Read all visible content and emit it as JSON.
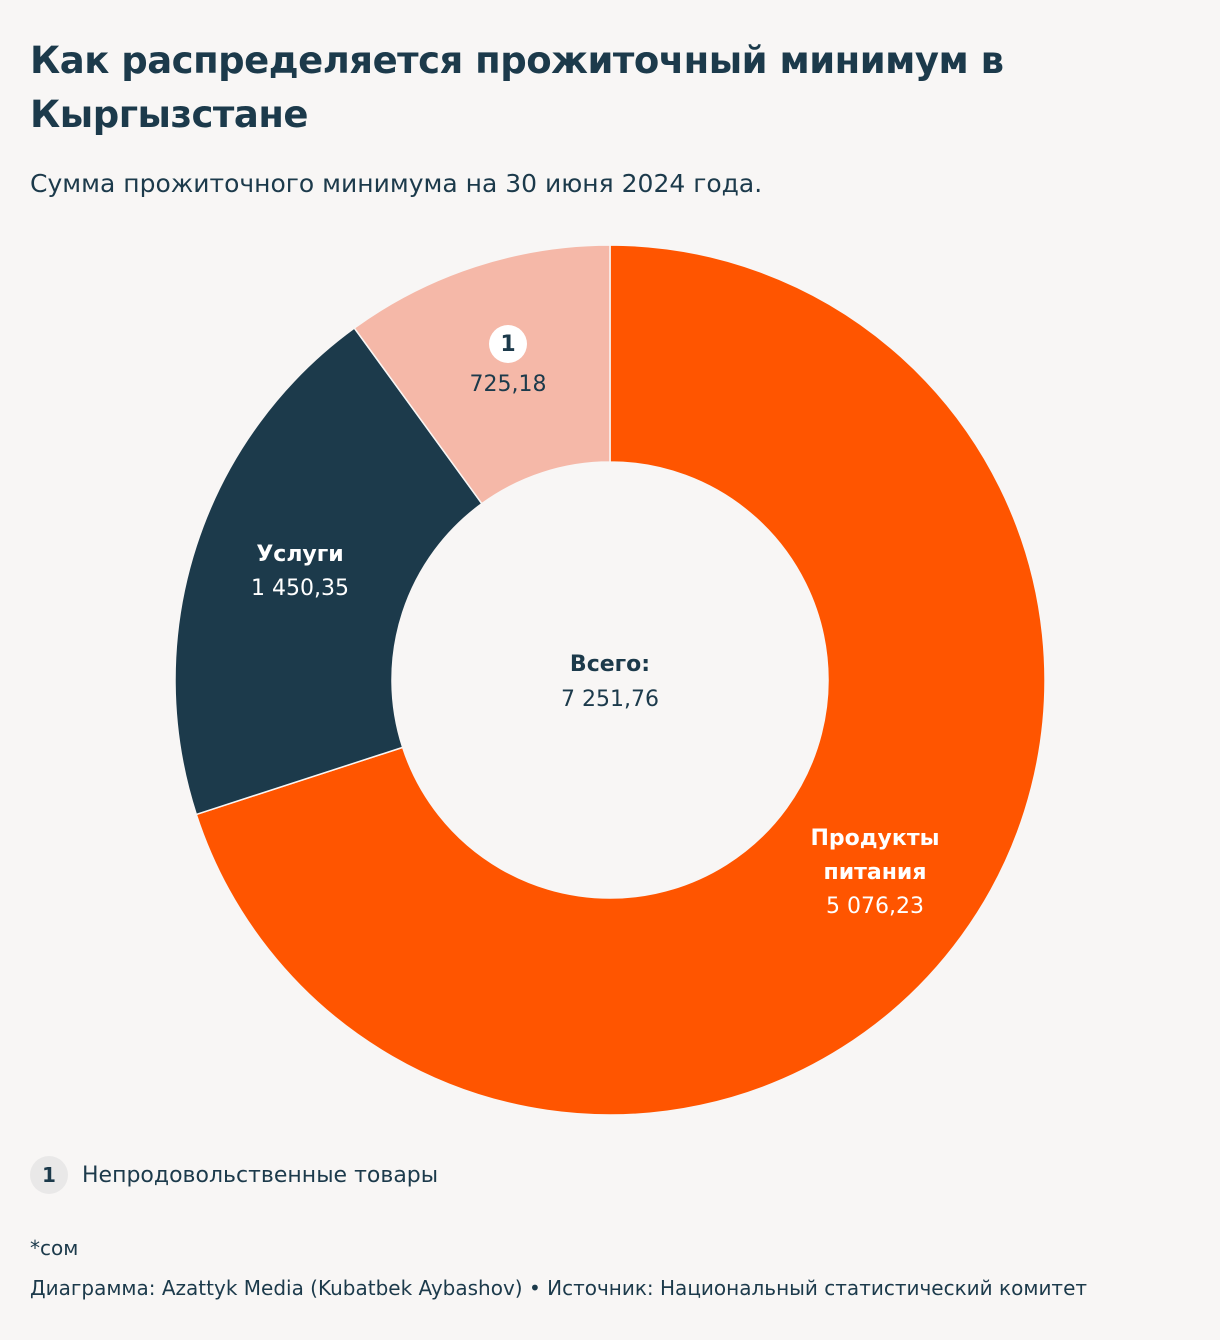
{
  "title": "Как распределяется прожиточный минимум в Кыргызстане",
  "subtitle": "Сумма прожиточного минимума на 30 июня 2024 года.",
  "chart_data": {
    "type": "pie",
    "variant": "donut",
    "title": "Как распределяется прожиточный минимум в Кыргызстане",
    "subtitle": "Сумма прожиточного минимума на 30 июня 2024 года.",
    "center_label": "Всего:",
    "center_value": "7 251,76",
    "total": 7251.76,
    "slices": [
      {
        "name": "Продукты питания",
        "label_lines": [
          "Продукты",
          "питания"
        ],
        "value": 5076.23,
        "value_text": "5 076,23",
        "color": "#ff5500",
        "label_color": "#ffffff"
      },
      {
        "name": "Услуги",
        "label_lines": [
          "Услуги"
        ],
        "value": 1450.35,
        "value_text": "1 450,35",
        "color": "#1c3a4b",
        "label_color": "#ffffff"
      },
      {
        "name": "1",
        "marker": "1",
        "label_lines": [],
        "value": 725.18,
        "value_text": "725,18",
        "color": "#f5b8a8",
        "label_color": "#1c3a4b"
      }
    ]
  },
  "legend": {
    "marker": "1",
    "text": "Непродовольственные товары"
  },
  "note": "*сом",
  "credit": "Диаграмма: Azattyk Media (Kubatbek Aybashov) • Источник: Национальный статистический комитет",
  "colors": {
    "background": "#f8f6f5",
    "text": "#1c3a4b",
    "food": "#ff5500",
    "services": "#1c3a4b",
    "nonfood": "#f5b8a8"
  }
}
